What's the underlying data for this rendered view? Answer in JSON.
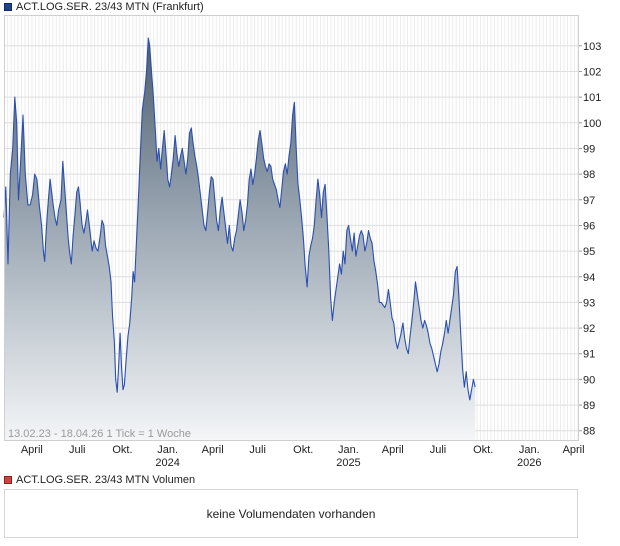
{
  "chart_data": {
    "type": "area",
    "title": "ACT.LOG.SER. 23/43 MTN (Frankfurt)",
    "range_label": "13.02.23 - 18.04.26",
    "tick_info": "1 Tick = 1 Woche",
    "x_ticks": [
      {
        "label": "April",
        "year": "",
        "t": 0.154
      },
      {
        "label": "Juli",
        "year": "",
        "t": 0.405
      },
      {
        "label": "Okt.",
        "year": "",
        "t": 0.655
      },
      {
        "label": "Jan.",
        "year": "2024",
        "t": 0.905
      },
      {
        "label": "April",
        "year": "",
        "t": 1.154
      },
      {
        "label": "Juli",
        "year": "",
        "t": 1.403
      },
      {
        "label": "Okt.",
        "year": "",
        "t": 1.655
      },
      {
        "label": "Jan.",
        "year": "2025",
        "t": 1.905
      },
      {
        "label": "April",
        "year": "",
        "t": 2.15
      },
      {
        "label": "Juli",
        "year": "",
        "t": 2.4
      },
      {
        "label": "Okt.",
        "year": "",
        "t": 2.65
      },
      {
        "label": "Jan.",
        "year": "2026",
        "t": 2.905
      },
      {
        "label": "April",
        "year": "",
        "t": 3.15
      }
    ],
    "y_ticks": [
      88,
      89,
      90,
      91,
      92,
      93,
      94,
      95,
      96,
      97,
      98,
      99,
      100,
      101,
      102,
      103
    ],
    "ylim": [
      87.6,
      104.2
    ],
    "xlim": [
      0,
      3.18
    ],
    "grid": true,
    "series": [
      {
        "name": "ACT.LOG.SER. 23/43 MTN",
        "color": "#2a4fb0",
        "points": [
          [
            0.0,
            96.3
          ],
          [
            0.01,
            97.5
          ],
          [
            0.022,
            94.5
          ],
          [
            0.035,
            98.0
          ],
          [
            0.048,
            99.0
          ],
          [
            0.06,
            101.0
          ],
          [
            0.07,
            100.0
          ],
          [
            0.08,
            97.0
          ],
          [
            0.092,
            98.5
          ],
          [
            0.105,
            100.3
          ],
          [
            0.118,
            98.0
          ],
          [
            0.132,
            96.8
          ],
          [
            0.145,
            96.8
          ],
          [
            0.158,
            97.2
          ],
          [
            0.17,
            98.0
          ],
          [
            0.182,
            97.8
          ],
          [
            0.195,
            96.8
          ],
          [
            0.208,
            96.0
          ],
          [
            0.218,
            95.0
          ],
          [
            0.225,
            94.6
          ],
          [
            0.232,
            95.6
          ],
          [
            0.24,
            96.5
          ],
          [
            0.248,
            97.2
          ],
          [
            0.255,
            97.8
          ],
          [
            0.263,
            97.3
          ],
          [
            0.272,
            96.8
          ],
          [
            0.282,
            96.3
          ],
          [
            0.292,
            96.0
          ],
          [
            0.302,
            96.6
          ],
          [
            0.315,
            97.0
          ],
          [
            0.325,
            98.5
          ],
          [
            0.335,
            97.5
          ],
          [
            0.345,
            96.5
          ],
          [
            0.355,
            95.5
          ],
          [
            0.362,
            95.0
          ],
          [
            0.372,
            94.5
          ],
          [
            0.382,
            95.6
          ],
          [
            0.392,
            96.4
          ],
          [
            0.402,
            97.3
          ],
          [
            0.412,
            97.5
          ],
          [
            0.422,
            96.8
          ],
          [
            0.432,
            96.0
          ],
          [
            0.442,
            95.7
          ],
          [
            0.452,
            96.1
          ],
          [
            0.462,
            96.6
          ],
          [
            0.475,
            95.8
          ],
          [
            0.488,
            95.0
          ],
          [
            0.498,
            95.4
          ],
          [
            0.51,
            95.1
          ],
          [
            0.52,
            95.0
          ],
          [
            0.532,
            95.6
          ],
          [
            0.542,
            96.2
          ],
          [
            0.552,
            96.0
          ],
          [
            0.562,
            95.2
          ],
          [
            0.572,
            94.8
          ],
          [
            0.582,
            94.4
          ],
          [
            0.592,
            93.8
          ],
          [
            0.6,
            92.5
          ],
          [
            0.61,
            91.5
          ],
          [
            0.618,
            90.0
          ],
          [
            0.626,
            89.5
          ],
          [
            0.634,
            90.5
          ],
          [
            0.642,
            91.8
          ],
          [
            0.65,
            90.5
          ],
          [
            0.658,
            89.6
          ],
          [
            0.666,
            89.8
          ],
          [
            0.676,
            90.8
          ],
          [
            0.686,
            91.7
          ],
          [
            0.696,
            92.2
          ],
          [
            0.706,
            93.2
          ],
          [
            0.714,
            94.2
          ],
          [
            0.722,
            93.8
          ],
          [
            0.73,
            95.0
          ],
          [
            0.74,
            96.5
          ],
          [
            0.752,
            98.5
          ],
          [
            0.765,
            100.5
          ],
          [
            0.778,
            101.2
          ],
          [
            0.788,
            102.0
          ],
          [
            0.798,
            103.3
          ],
          [
            0.806,
            103.0
          ],
          [
            0.816,
            102.0
          ],
          [
            0.826,
            101.0
          ],
          [
            0.836,
            99.8
          ],
          [
            0.846,
            98.5
          ],
          [
            0.856,
            99.0
          ],
          [
            0.866,
            98.2
          ],
          [
            0.876,
            99.0
          ],
          [
            0.886,
            99.7
          ],
          [
            0.896,
            98.8
          ],
          [
            0.906,
            97.8
          ],
          [
            0.916,
            97.5
          ],
          [
            0.926,
            98.0
          ],
          [
            0.936,
            98.6
          ],
          [
            0.946,
            99.5
          ],
          [
            0.956,
            98.8
          ],
          [
            0.966,
            98.3
          ],
          [
            0.976,
            98.7
          ],
          [
            0.986,
            99.0
          ],
          [
            0.996,
            98.5
          ],
          [
            1.006,
            98.0
          ],
          [
            1.016,
            98.6
          ],
          [
            1.026,
            99.6
          ],
          [
            1.036,
            99.8
          ],
          [
            1.046,
            99.2
          ],
          [
            1.056,
            98.7
          ],
          [
            1.066,
            98.3
          ],
          [
            1.076,
            97.8
          ],
          [
            1.086,
            97.2
          ],
          [
            1.096,
            96.6
          ],
          [
            1.106,
            96.0
          ],
          [
            1.116,
            95.8
          ],
          [
            1.126,
            96.5
          ],
          [
            1.136,
            97.3
          ],
          [
            1.146,
            97.9
          ],
          [
            1.156,
            97.8
          ],
          [
            1.166,
            97.0
          ],
          [
            1.176,
            96.2
          ],
          [
            1.186,
            95.8
          ],
          [
            1.196,
            96.6
          ],
          [
            1.206,
            97.1
          ],
          [
            1.216,
            96.5
          ],
          [
            1.226,
            95.9
          ],
          [
            1.236,
            95.3
          ],
          [
            1.246,
            96.0
          ],
          [
            1.256,
            95.2
          ],
          [
            1.266,
            95.0
          ],
          [
            1.276,
            95.5
          ],
          [
            1.286,
            95.8
          ],
          [
            1.296,
            96.4
          ],
          [
            1.306,
            97.0
          ],
          [
            1.316,
            96.5
          ],
          [
            1.326,
            95.8
          ],
          [
            1.336,
            96.2
          ],
          [
            1.346,
            96.8
          ],
          [
            1.356,
            97.8
          ],
          [
            1.366,
            98.2
          ],
          [
            1.376,
            97.6
          ],
          [
            1.386,
            98.0
          ],
          [
            1.396,
            98.6
          ],
          [
            1.406,
            99.3
          ],
          [
            1.416,
            99.7
          ],
          [
            1.426,
            99.2
          ],
          [
            1.436,
            98.6
          ],
          [
            1.446,
            98.3
          ],
          [
            1.456,
            98.1
          ],
          [
            1.466,
            98.4
          ],
          [
            1.476,
            98.3
          ],
          [
            1.486,
            97.8
          ],
          [
            1.496,
            97.6
          ],
          [
            1.506,
            97.4
          ],
          [
            1.516,
            97.0
          ],
          [
            1.526,
            96.7
          ],
          [
            1.536,
            97.4
          ],
          [
            1.546,
            98.1
          ],
          [
            1.556,
            98.4
          ],
          [
            1.566,
            98.0
          ],
          [
            1.576,
            98.7
          ],
          [
            1.586,
            99.2
          ],
          [
            1.596,
            100.3
          ],
          [
            1.606,
            100.8
          ],
          [
            1.616,
            99.0
          ],
          [
            1.626,
            97.6
          ],
          [
            1.636,
            97.0
          ],
          [
            1.646,
            96.3
          ],
          [
            1.656,
            95.5
          ],
          [
            1.666,
            94.4
          ],
          [
            1.676,
            93.6
          ],
          [
            1.686,
            94.8
          ],
          [
            1.696,
            95.2
          ],
          [
            1.706,
            95.5
          ],
          [
            1.716,
            96.0
          ],
          [
            1.726,
            97.0
          ],
          [
            1.736,
            97.8
          ],
          [
            1.746,
            97.2
          ],
          [
            1.756,
            96.3
          ],
          [
            1.766,
            97.3
          ],
          [
            1.776,
            97.6
          ],
          [
            1.786,
            96.4
          ],
          [
            1.796,
            95.1
          ],
          [
            1.806,
            93.2
          ],
          [
            1.816,
            92.3
          ],
          [
            1.826,
            93.0
          ],
          [
            1.836,
            93.5
          ],
          [
            1.846,
            94.0
          ],
          [
            1.856,
            94.5
          ],
          [
            1.866,
            94.1
          ],
          [
            1.876,
            95.0
          ],
          [
            1.886,
            94.5
          ],
          [
            1.896,
            95.8
          ],
          [
            1.906,
            96.0
          ],
          [
            1.916,
            95.5
          ],
          [
            1.926,
            95.0
          ],
          [
            1.936,
            95.7
          ],
          [
            1.946,
            94.8
          ],
          [
            1.956,
            95.2
          ],
          [
            1.966,
            95.6
          ],
          [
            1.976,
            95.8
          ],
          [
            1.986,
            95.6
          ],
          [
            1.996,
            95.0
          ],
          [
            2.006,
            95.3
          ],
          [
            2.016,
            95.8
          ],
          [
            2.026,
            95.5
          ],
          [
            2.036,
            95.3
          ],
          [
            2.046,
            94.6
          ],
          [
            2.056,
            94.2
          ],
          [
            2.066,
            93.7
          ],
          [
            2.076,
            93.0
          ],
          [
            2.086,
            93.0
          ],
          [
            2.096,
            92.9
          ],
          [
            2.106,
            92.8
          ],
          [
            2.116,
            93.0
          ],
          [
            2.126,
            93.5
          ],
          [
            2.136,
            93.0
          ],
          [
            2.146,
            92.4
          ],
          [
            2.156,
            92.2
          ],
          [
            2.166,
            91.5
          ],
          [
            2.176,
            91.2
          ],
          [
            2.186,
            91.5
          ],
          [
            2.196,
            91.8
          ],
          [
            2.206,
            92.2
          ],
          [
            2.216,
            91.6
          ],
          [
            2.226,
            91.2
          ],
          [
            2.236,
            91.0
          ],
          [
            2.246,
            91.7
          ],
          [
            2.256,
            92.3
          ],
          [
            2.266,
            93.0
          ],
          [
            2.276,
            93.8
          ],
          [
            2.286,
            93.3
          ],
          [
            2.296,
            92.8
          ],
          [
            2.306,
            92.3
          ],
          [
            2.316,
            92.0
          ],
          [
            2.326,
            92.3
          ],
          [
            2.336,
            92.1
          ],
          [
            2.346,
            91.8
          ],
          [
            2.356,
            91.4
          ],
          [
            2.366,
            91.2
          ],
          [
            2.376,
            90.9
          ],
          [
            2.386,
            90.6
          ],
          [
            2.396,
            90.3
          ],
          [
            2.406,
            90.6
          ],
          [
            2.416,
            91.1
          ],
          [
            2.426,
            91.4
          ],
          [
            2.436,
            91.8
          ],
          [
            2.446,
            92.3
          ],
          [
            2.456,
            91.8
          ],
          [
            2.466,
            92.3
          ],
          [
            2.476,
            92.8
          ],
          [
            2.486,
            93.3
          ],
          [
            2.496,
            94.2
          ],
          [
            2.506,
            94.4
          ],
          [
            2.516,
            93.2
          ],
          [
            2.526,
            91.8
          ],
          [
            2.536,
            90.4
          ],
          [
            2.546,
            89.7
          ],
          [
            2.556,
            90.3
          ],
          [
            2.566,
            89.6
          ],
          [
            2.576,
            89.2
          ],
          [
            2.586,
            89.6
          ],
          [
            2.596,
            90.0
          ],
          [
            2.606,
            89.7
          ]
        ]
      }
    ]
  },
  "volume": {
    "title": "ACT.LOG.SER. 23/43 MTN Volumen",
    "message": "keine Volumendaten vorhanden"
  }
}
